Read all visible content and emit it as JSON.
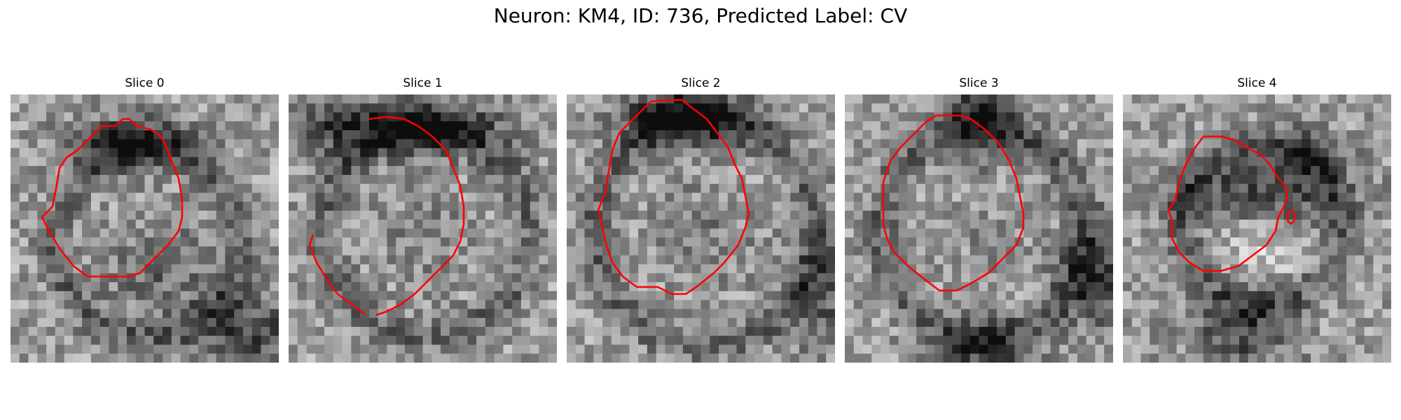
{
  "figure": {
    "title": "Neuron: KM4, ID: 736, Predicted Label: CV",
    "contour_color": "#ff0000",
    "colormap": "gray",
    "panels": [
      {
        "title": "Slice 0"
      },
      {
        "title": "Slice 1"
      },
      {
        "title": "Slice 2"
      },
      {
        "title": "Slice 3"
      },
      {
        "title": "Slice 4"
      }
    ]
  }
}
